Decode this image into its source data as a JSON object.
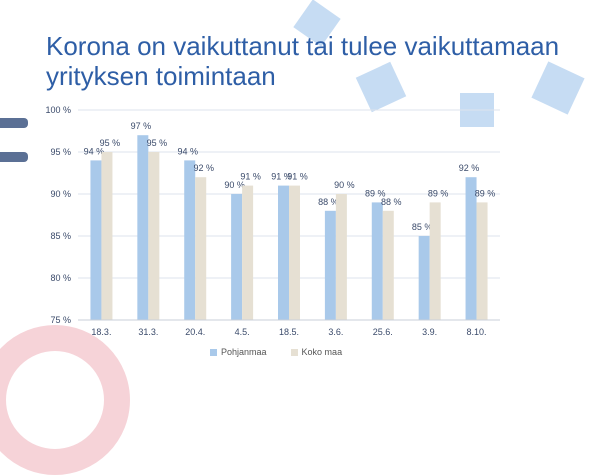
{
  "title": "Korona on vaikuttanut tai tulee vaikuttamaan yrityksen toimintaan",
  "colors": {
    "pohjanmaa": "#a9c9ea",
    "koko_maa": "#e6e0d3",
    "title": "#2e5ea6",
    "label": "#3a4a6a",
    "grid": "#dde3ec"
  },
  "chart_data": {
    "type": "bar",
    "categories": [
      "18.3.",
      "31.3.",
      "20.4.",
      "4.5.",
      "18.5.",
      "3.6.",
      "25.6.",
      "3.9.",
      "8.10."
    ],
    "series": [
      {
        "name": "Pohjanmaa",
        "values": [
          94,
          97,
          94,
          90,
          91,
          88,
          89,
          85,
          92
        ],
        "labels": [
          "94 %",
          "97 %",
          "94 %",
          "90 %",
          "91 %",
          "88 %",
          "89 %",
          "85 %",
          "92 %"
        ]
      },
      {
        "name": "Koko maa",
        "values": [
          95,
          95,
          92,
          91,
          91,
          90,
          88,
          89,
          89
        ],
        "labels": [
          "95 %",
          "95 %",
          "92 %",
          "91 %",
          "91 %",
          "90 %",
          "88 %",
          "89 %",
          "89 %"
        ]
      }
    ],
    "yticks": [
      "75 %",
      "80 %",
      "85 %",
      "90 %",
      "95 %",
      "100 %"
    ],
    "ytick_values": [
      75,
      80,
      85,
      90,
      95,
      100
    ],
    "ylim": [
      75,
      100
    ],
    "grid": true,
    "legend": "bottom"
  }
}
